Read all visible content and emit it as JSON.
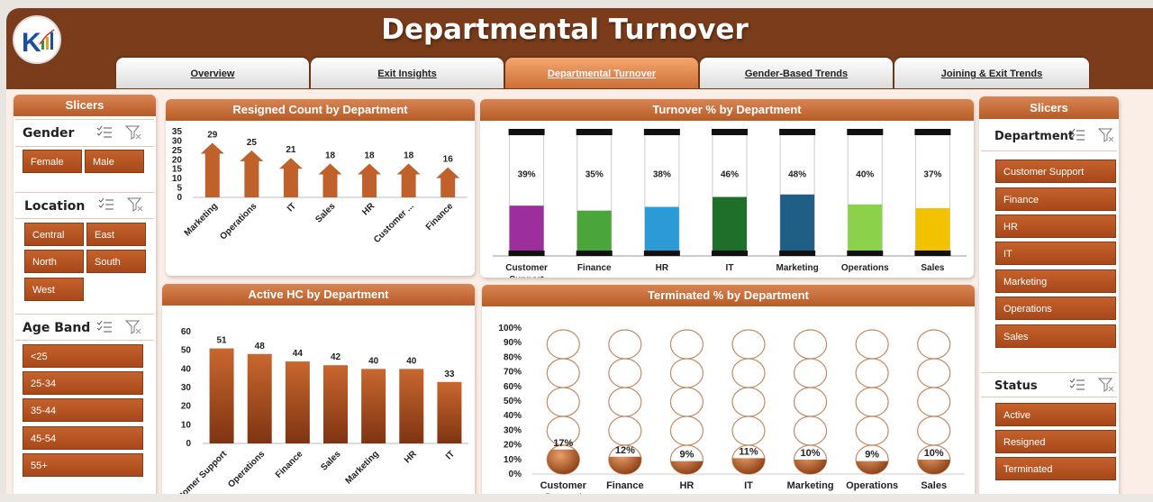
{
  "header": {
    "title": "Departmental Turnover"
  },
  "tabs": [
    {
      "label": "Overview"
    },
    {
      "label": "Exit Insights"
    },
    {
      "label": "Departmental Turnover",
      "active": true
    },
    {
      "label": "Gender-Based Trends"
    },
    {
      "label": "Joining & Exit Trends"
    }
  ],
  "left_slicers": {
    "title": "Slicers",
    "gender": {
      "title": "Gender",
      "items": [
        "Female",
        "Male"
      ]
    },
    "location": {
      "title": "Location",
      "items": [
        "Central",
        "East",
        "North",
        "South",
        "West"
      ]
    },
    "age_band": {
      "title": "Age Band",
      "items": [
        "<25",
        "25-34",
        "35-44",
        "45-54",
        "55+"
      ]
    }
  },
  "right_slicers": {
    "title": "Slicers",
    "department": {
      "title": "Department",
      "items": [
        "Customer Support",
        "Finance",
        "HR",
        "IT",
        "Marketing",
        "Operations",
        "Sales"
      ]
    },
    "status": {
      "title": "Status",
      "items": [
        "Active",
        "Resigned",
        "Terminated"
      ]
    }
  },
  "colors": {
    "header": "#7a3c1a",
    "accent": "#c0612c",
    "panel_head": "#c8703c"
  },
  "chart_data": [
    {
      "type": "bar",
      "title": "Resigned Count by Department",
      "categories": [
        "Marketing",
        "Operations",
        "IT",
        "Sales",
        "HR",
        "Customer ...",
        "Finance"
      ],
      "values": [
        29,
        25,
        21,
        18,
        18,
        18,
        16
      ],
      "yticks": [
        0,
        5,
        10,
        15,
        20,
        25,
        30,
        35
      ],
      "ylim": [
        0,
        35
      ]
    },
    {
      "type": "bar",
      "title": "Turnover % by Department",
      "categories": [
        "Customer Support",
        "Finance",
        "HR",
        "IT",
        "Marketing",
        "Operations",
        "Sales"
      ],
      "values": [
        39,
        35,
        38,
        46,
        48,
        40,
        37
      ],
      "value_labels": [
        "39%",
        "35%",
        "38%",
        "46%",
        "48%",
        "40%",
        "37%"
      ],
      "colors": [
        "#9c2f9c",
        "#4aa63a",
        "#2b9ad6",
        "#1f6e2a",
        "#1f5f85",
        "#8bd14a",
        "#f2c200"
      ]
    },
    {
      "type": "bar",
      "title": "Active HC by Department",
      "categories": [
        "Customer Support",
        "Operations",
        "Finance",
        "Sales",
        "Marketing",
        "HR",
        "IT"
      ],
      "values": [
        51,
        48,
        44,
        42,
        40,
        40,
        33
      ],
      "yticks": [
        0,
        10,
        20,
        30,
        40,
        50,
        60
      ],
      "ylim": [
        0,
        60
      ]
    },
    {
      "type": "bar",
      "title": "Terminated % by Department",
      "categories": [
        "Customer Support",
        "Finance",
        "HR",
        "IT",
        "Marketing",
        "Operations",
        "Sales"
      ],
      "values": [
        17,
        12,
        9,
        11,
        10,
        9,
        10
      ],
      "value_labels": [
        "17%",
        "12%",
        "9%",
        "11%",
        "10%",
        "9%",
        "10%"
      ],
      "yticks": [
        "0%",
        "10%",
        "20%",
        "30%",
        "40%",
        "50%",
        "60%",
        "70%",
        "80%",
        "90%",
        "100%"
      ],
      "ylim": [
        0,
        100
      ]
    }
  ]
}
